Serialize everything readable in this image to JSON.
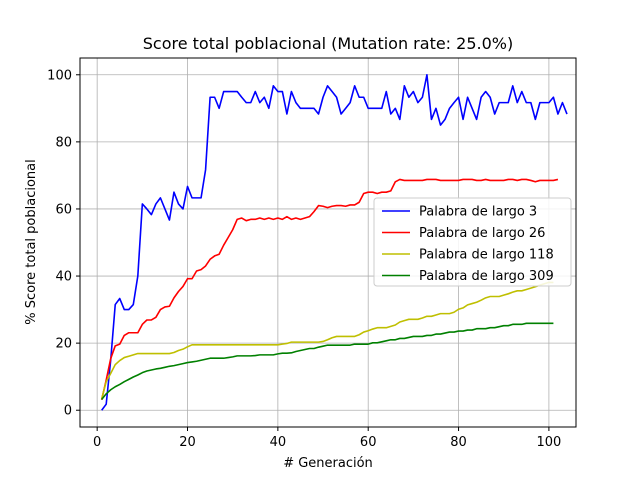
{
  "chart_data": {
    "type": "line",
    "title": "Score total poblacional (Mutation rate: 25.0%)",
    "xlabel": "# Generación",
    "ylabel": "% Score total poblacional",
    "xlim": [
      -3.8,
      106
    ],
    "ylim": [
      -5,
      105
    ],
    "xticks": [
      0,
      20,
      40,
      60,
      80,
      100
    ],
    "yticks": [
      0,
      20,
      40,
      60,
      80,
      100
    ],
    "grid": true,
    "legend_position": "center-right",
    "series": [
      {
        "name": "Palabra de largo 3",
        "color": "#0000ff",
        "x_start": 1,
        "values": [
          0,
          1.8,
          15,
          31.5,
          33.3,
          30,
          30,
          31.5,
          40,
          61.5,
          60,
          58.3,
          61.5,
          63.3,
          60,
          56.7,
          65,
          61.5,
          60,
          66.7,
          63.3,
          63.3,
          63.3,
          71.7,
          93.3,
          93.3,
          90,
          95,
          95,
          95,
          95,
          93.3,
          91.7,
          91.7,
          95,
          91.7,
          93.3,
          90,
          96.7,
          95,
          95,
          88.3,
          95,
          91.7,
          90,
          90,
          90,
          90,
          88.3,
          93.3,
          96.7,
          95,
          93.3,
          88.3,
          90,
          91.7,
          96.7,
          93.3,
          93.3,
          90,
          90,
          90,
          90,
          95,
          88.3,
          90,
          86.7,
          96.7,
          93.3,
          95,
          91.7,
          93.3,
          100,
          86.7,
          90,
          85,
          86.7,
          90,
          91.7,
          93.3,
          86.7,
          93.3,
          90,
          86.7,
          93.3,
          95,
          93.3,
          88.3,
          91.7,
          91.7,
          91.7,
          96.7,
          91.7,
          95,
          91.7,
          91.7,
          86.7,
          91.7,
          91.7,
          91.7,
          93.3,
          88.3,
          91.7,
          88.3
        ]
      },
      {
        "name": "Palabra de largo 26",
        "color": "#ff0000",
        "x_start": 1,
        "values": [
          3.1,
          9,
          15.4,
          19.2,
          19.7,
          22.3,
          23.1,
          23.1,
          23.1,
          25.6,
          26.9,
          26.9,
          27.7,
          30,
          30.8,
          31,
          33.5,
          35.4,
          36.9,
          39.2,
          39.2,
          41.5,
          41.9,
          43,
          45,
          46,
          46.5,
          49.2,
          51.5,
          53.8,
          56.9,
          57.3,
          56.5,
          56.9,
          56.9,
          57.3,
          56.9,
          57.3,
          56.9,
          57.3,
          56.9,
          57.7,
          56.9,
          57.3,
          56.9,
          57.3,
          57.7,
          59.2,
          61,
          60.8,
          60.4,
          60.8,
          61,
          61,
          60.8,
          61.2,
          61.2,
          62,
          64.6,
          65,
          65,
          64.6,
          65,
          65,
          65.4,
          68.1,
          68.8,
          68.5,
          68.5,
          68.5,
          68.5,
          68.5,
          68.8,
          68.8,
          68.8,
          68.5,
          68.5,
          68.5,
          68.5,
          68.5,
          68.8,
          68.8,
          68.8,
          68.5,
          68.5,
          68.8,
          68.5,
          68.5,
          68.5,
          68.5,
          68.8,
          68.8,
          68.5,
          68.8,
          68.8,
          68.5,
          68.1,
          68.5,
          68.5,
          68.5,
          68.5,
          68.8
        ]
      },
      {
        "name": "Palabra de largo 118",
        "color": "#bfbf00",
        "x_start": 1,
        "values": [
          3.4,
          8.5,
          11,
          13.6,
          14.8,
          15.7,
          16.1,
          16.5,
          16.9,
          16.9,
          16.9,
          16.9,
          16.9,
          16.9,
          16.9,
          16.9,
          17.2,
          17.8,
          18.2,
          18.9,
          19.5,
          19.5,
          19.5,
          19.5,
          19.5,
          19.5,
          19.5,
          19.5,
          19.5,
          19.5,
          19.5,
          19.5,
          19.5,
          19.5,
          19.5,
          19.5,
          19.5,
          19.5,
          19.5,
          19.5,
          19.7,
          19.9,
          20.3,
          20.3,
          20.3,
          20.3,
          20.3,
          20.3,
          20.3,
          20.5,
          21,
          21.6,
          22,
          22,
          22,
          22,
          22,
          22.5,
          23.3,
          23.7,
          24.2,
          24.6,
          24.6,
          24.6,
          25,
          25.4,
          26.3,
          26.7,
          27.1,
          27.1,
          27.1,
          27.5,
          28,
          28,
          28.4,
          28.8,
          28.8,
          28.8,
          29.2,
          30.1,
          30.5,
          31.4,
          31.8,
          32.2,
          32.8,
          33.5,
          33.9,
          33.9,
          33.9,
          34.3,
          34.7,
          35.2,
          35.6,
          35.6,
          36,
          36.4,
          36.8,
          37.3,
          37.7,
          38.1,
          38.1
        ]
      },
      {
        "name": "Palabra de largo 309",
        "color": "#008000",
        "x_start": 1,
        "values": [
          3.2,
          4.9,
          6.1,
          7,
          7.7,
          8.5,
          9.2,
          9.9,
          10.5,
          11.2,
          11.7,
          12,
          12.3,
          12.5,
          12.8,
          13.1,
          13.3,
          13.6,
          13.9,
          14.2,
          14.4,
          14.6,
          14.9,
          15.2,
          15.5,
          15.5,
          15.5,
          15.5,
          15.7,
          15.9,
          16.2,
          16.2,
          16.2,
          16.2,
          16.3,
          16.5,
          16.5,
          16.5,
          16.5,
          16.8,
          17,
          17,
          17.1,
          17.5,
          17.8,
          18.1,
          18.4,
          18.4,
          18.8,
          19.1,
          19.4,
          19.4,
          19.4,
          19.4,
          19.4,
          19.4,
          19.7,
          19.7,
          19.7,
          19.7,
          20.1,
          20.1,
          20.4,
          20.7,
          21,
          21,
          21.4,
          21.4,
          21.7,
          22,
          22,
          22,
          22.3,
          22.3,
          22.7,
          22.7,
          23,
          23.3,
          23.3,
          23.6,
          23.6,
          23.9,
          23.9,
          24.3,
          24.3,
          24.3,
          24.6,
          24.6,
          24.9,
          25.2,
          25.2,
          25.6,
          25.6,
          25.6,
          25.9,
          25.9,
          25.9,
          25.9,
          25.9,
          25.9,
          25.9
        ]
      }
    ]
  }
}
